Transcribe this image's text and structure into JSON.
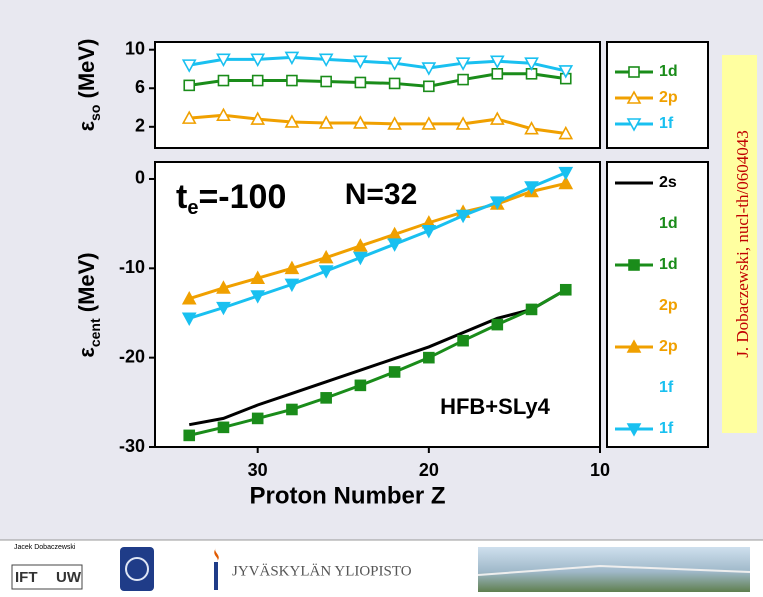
{
  "chart_data": [
    {
      "type": "line",
      "ylabel": [
        "ε",
        "so",
        " (MeV)"
      ],
      "x": [
        34,
        32,
        30,
        28,
        26,
        24,
        22,
        20,
        18,
        16,
        14,
        12
      ],
      "xlim": [
        36,
        10
      ],
      "ylim": [
        -0.2,
        10.8
      ],
      "yticks": [
        2,
        6,
        10
      ],
      "series": [
        {
          "name": "1d",
          "color": "#1a8c1a",
          "marker": "square",
          "filled": false,
          "values": [
            6.3,
            6.8,
            6.8,
            6.8,
            6.7,
            6.6,
            6.5,
            6.2,
            6.9,
            7.5,
            7.5,
            7.0
          ]
        },
        {
          "name": "2p",
          "color": "#f0a000",
          "marker": "triangle-up",
          "filled": false,
          "values": [
            2.9,
            3.2,
            2.8,
            2.5,
            2.4,
            2.4,
            2.3,
            2.3,
            2.3,
            2.8,
            1.8,
            1.3
          ]
        },
        {
          "name": "1f",
          "color": "#19c0f0",
          "marker": "triangle-down",
          "filled": false,
          "values": [
            8.4,
            9.0,
            9.0,
            9.2,
            9.0,
            8.8,
            8.6,
            8.1,
            8.6,
            8.8,
            8.6,
            7.8
          ]
        }
      ]
    },
    {
      "type": "line",
      "ylabel": [
        "ε",
        "cent",
        " (MeV)"
      ],
      "xlabel": "Proton Number Z",
      "x": [
        34,
        32,
        30,
        28,
        26,
        24,
        22,
        20,
        18,
        16,
        14,
        12
      ],
      "xlim": [
        36,
        10
      ],
      "xticks": [
        30,
        20,
        10
      ],
      "ylim": [
        -30,
        1.9
      ],
      "yticks": [
        0,
        -10,
        -20,
        -30
      ],
      "annotations": [
        [
          "t",
          "e",
          "=-100"
        ],
        "N=32",
        "HFB+SLy4"
      ],
      "series": [
        {
          "name": "2s",
          "color": "#000000",
          "marker": "none",
          "filled": false,
          "values": [
            -27.5,
            -26.8,
            -25.3,
            -24.0,
            -22.7,
            -21.4,
            -20.1,
            -18.8,
            -17.2,
            -15.6,
            -14.6,
            -12.4
          ]
        },
        {
          "name": "1d",
          "color": "#1a8c1a",
          "marker": "none",
          "filled": false,
          "values": [
            null,
            null,
            null,
            null,
            null,
            null,
            null,
            null,
            null,
            null,
            null,
            null
          ]
        },
        {
          "name": "1d",
          "color": "#1a8c1a",
          "marker": "square",
          "filled": true,
          "values": [
            -28.7,
            -27.8,
            -26.8,
            -25.8,
            -24.5,
            -23.1,
            -21.6,
            -20.0,
            -18.1,
            -16.3,
            -14.6,
            -12.4
          ]
        },
        {
          "name": "2p",
          "color": "#f0a000",
          "marker": "none",
          "filled": false,
          "values": [
            null,
            null,
            null,
            null,
            null,
            null,
            null,
            null,
            null,
            null,
            null,
            null
          ]
        },
        {
          "name": "2p",
          "color": "#f0a000",
          "marker": "triangle-up",
          "filled": true,
          "values": [
            -13.4,
            -12.2,
            -11.1,
            -10.0,
            -8.8,
            -7.5,
            -6.2,
            -4.9,
            -3.7,
            -2.8,
            -1.4,
            -0.5
          ]
        },
        {
          "name": "1f",
          "color": "#19c0f0",
          "marker": "none",
          "filled": false,
          "values": [
            null,
            null,
            null,
            null,
            null,
            null,
            null,
            null,
            null,
            null,
            null,
            null
          ]
        },
        {
          "name": "1f",
          "color": "#19c0f0",
          "marker": "triangle-down",
          "filled": true,
          "values": [
            -15.6,
            -14.4,
            -13.1,
            -11.8,
            -10.3,
            -8.8,
            -7.3,
            -5.8,
            -4.1,
            -2.6,
            -0.9,
            0.7
          ]
        }
      ]
    }
  ],
  "side_note": "J. Dobaczewski, nucl-th/0604043",
  "footer": {
    "author": "Jacek Dobaczewski",
    "logo_left": "IFT",
    "logo_right": "UW",
    "university": "JYVÄSKYLÄN YLIOPISTO"
  }
}
